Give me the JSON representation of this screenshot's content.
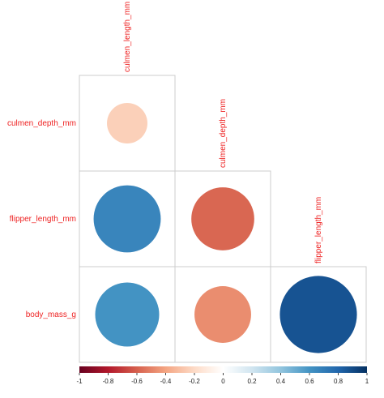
{
  "chart_data": {
    "type": "heatmap",
    "subtype": "correlation-circle-lower",
    "variables": [
      "culmen_length_mm",
      "culmen_depth_mm",
      "flipper_length_mm",
      "body_mass_g"
    ],
    "column_labels": [
      "culmen_length_mm",
      "culmen_depth_mm",
      "flipper_length_mm"
    ],
    "row_labels": [
      "culmen_depth_mm",
      "flipper_length_mm",
      "body_mass_g"
    ],
    "cells": [
      {
        "row": "culmen_depth_mm",
        "col": "culmen_length_mm",
        "value": -0.24
      },
      {
        "row": "flipper_length_mm",
        "col": "culmen_length_mm",
        "value": 0.66
      },
      {
        "row": "flipper_length_mm",
        "col": "culmen_depth_mm",
        "value": -0.58
      },
      {
        "row": "body_mass_g",
        "col": "culmen_length_mm",
        "value": 0.6
      },
      {
        "row": "body_mass_g",
        "col": "culmen_depth_mm",
        "value": -0.47
      },
      {
        "row": "body_mass_g",
        "col": "flipper_length_mm",
        "value": 0.87
      }
    ],
    "color_scale": {
      "min": -1,
      "max": 1,
      "ticks": [
        "-1",
        "-0.8",
        "-0.6",
        "-0.4",
        "-0.2",
        "0",
        "0.2",
        "0.4",
        "0.6",
        "0.8",
        "1"
      ],
      "stops": [
        "#67001F",
        "#B2182B",
        "#D6604D",
        "#F4A582",
        "#FDDBC7",
        "#FFFFFF",
        "#D1E5F0",
        "#92C5DE",
        "#4393C3",
        "#2166AC",
        "#053061"
      ]
    },
    "label_color": "#ee2222",
    "grid_color": "#cccccc",
    "legend_position": "bottom"
  }
}
